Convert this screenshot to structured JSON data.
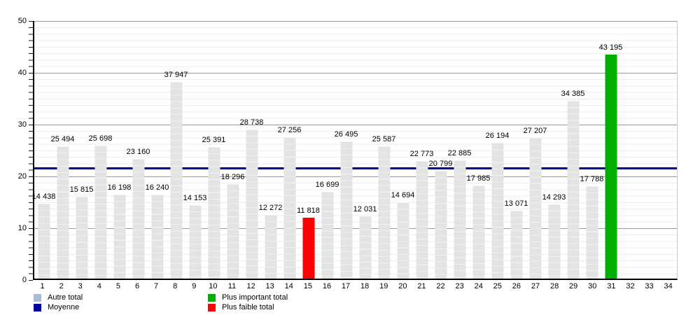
{
  "chart_data": {
    "type": "bar",
    "title": "",
    "categories": [
      "1",
      "2",
      "3",
      "4",
      "5",
      "6",
      "7",
      "8",
      "9",
      "10",
      "11",
      "12",
      "13",
      "14",
      "15",
      "16",
      "17",
      "18",
      "19",
      "20",
      "21",
      "22",
      "23",
      "24",
      "25",
      "26",
      "27",
      "28",
      "29",
      "30",
      "31",
      "32",
      "33",
      "34"
    ],
    "values": [
      14438,
      25494,
      15815,
      25698,
      16198,
      23160,
      16240,
      37947,
      14153,
      25391,
      18296,
      28738,
      12272,
      27256,
      11818,
      16699,
      26495,
      12031,
      25587,
      14694,
      22773,
      20799,
      22885,
      17985,
      26194,
      13071,
      27207,
      14293,
      34385,
      17788,
      43195,
      null,
      null,
      null
    ],
    "value_labels": [
      "14 438",
      "25 494",
      "15 815",
      "25 698",
      "16 198",
      "23 160",
      "16 240",
      "37 947",
      "14 153",
      "25 391",
      "18 296",
      "28 738",
      "12 272",
      "27 256",
      "11 818",
      "16 699",
      "26 495",
      "12 031",
      "25 587",
      "14 694",
      "22 773",
      "20 799",
      "22 885",
      "17 985",
      "26 194",
      "13 071",
      "27 207",
      "14 293",
      "34 385",
      "17 788",
      "43 195",
      null,
      null,
      null
    ],
    "xlabel": "",
    "ylabel": "",
    "ylim": [
      0,
      50000
    ],
    "yticks": [
      0,
      10,
      20,
      30,
      40,
      50
    ],
    "grid": "horizontal, minor + major",
    "average_line": {
      "value": 21580,
      "color": "#000099"
    },
    "highlight_max": {
      "category_index": 30,
      "color": "#00B000"
    },
    "highlight_min": {
      "category_index": 14,
      "color": "#FF0000"
    },
    "bar_default_color": "#e3e3e3",
    "legend_position": "bottom",
    "legend": [
      {
        "label": "Autre total",
        "color": "#A9BCD2"
      },
      {
        "label": "Moyenne",
        "color": "#000099"
      },
      {
        "label": "Plus important total",
        "color": "#00B000"
      },
      {
        "label": "Plus faible total",
        "color": "#FF0000"
      }
    ]
  }
}
